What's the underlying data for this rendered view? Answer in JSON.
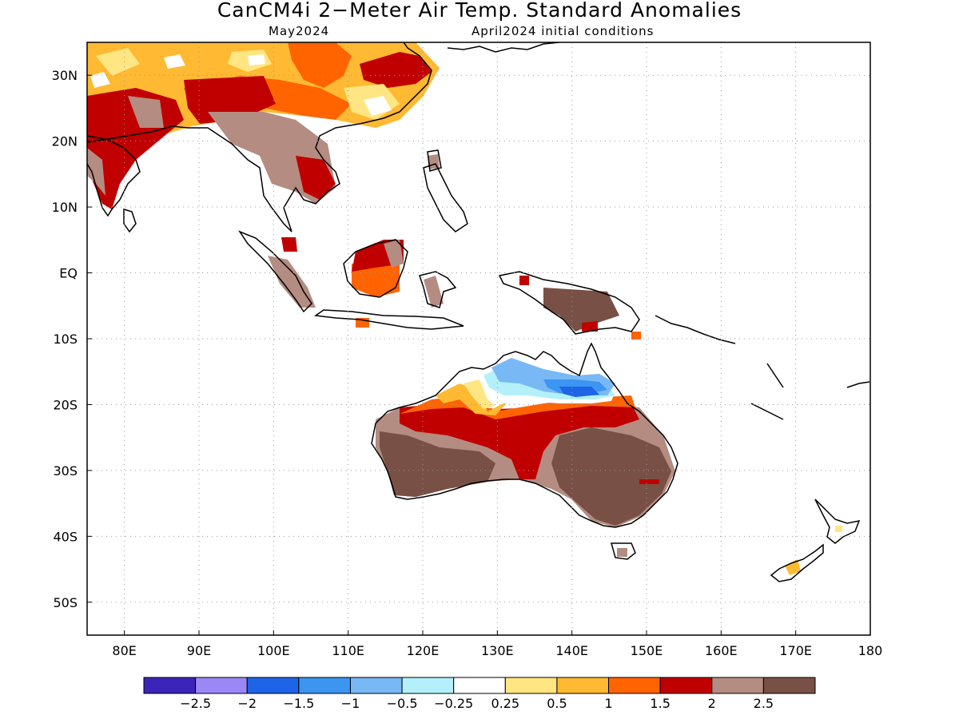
{
  "title": "CanCM4i 2−Meter Air Temp. Standard Anomalies",
  "valid_period": "May2024",
  "initial_conditions": "April2024 initial conditions",
  "map": {
    "lon_range": [
      75,
      180
    ],
    "lat_range": [
      -55,
      35
    ],
    "lat_ticks": [
      {
        "value": 30,
        "label": "30N"
      },
      {
        "value": 20,
        "label": "20N"
      },
      {
        "value": 10,
        "label": "10N"
      },
      {
        "value": 0,
        "label": "EQ"
      },
      {
        "value": -10,
        "label": "10S"
      },
      {
        "value": -20,
        "label": "20S"
      },
      {
        "value": -30,
        "label": "30S"
      },
      {
        "value": -40,
        "label": "40S"
      },
      {
        "value": -50,
        "label": "50S"
      }
    ],
    "lon_ticks": [
      {
        "value": 80,
        "label": "80E"
      },
      {
        "value": 90,
        "label": "90E"
      },
      {
        "value": 100,
        "label": "100E"
      },
      {
        "value": 110,
        "label": "110E"
      },
      {
        "value": 120,
        "label": "120E"
      },
      {
        "value": 130,
        "label": "130E"
      },
      {
        "value": 140,
        "label": "140E"
      },
      {
        "value": 150,
        "label": "150E"
      },
      {
        "value": 160,
        "label": "160E"
      },
      {
        "value": 170,
        "label": "170E"
      },
      {
        "value": 180,
        "label": "180"
      }
    ],
    "grid": "dotted"
  },
  "legend": {
    "colors": [
      "#3b24b8",
      "#9b87f5",
      "#1e64e6",
      "#3c95f0",
      "#78b9f5",
      "#b4f0fa",
      "#ffffff",
      "#ffe682",
      "#ffb932",
      "#ff6400",
      "#c00000",
      "#b48c82",
      "#785046"
    ],
    "labels": [
      "−2.5",
      "−2",
      "−1.5",
      "−1",
      "−0.5",
      "−0.25",
      "0.25",
      "0.5",
      "1",
      "1.5",
      "2",
      "2.5"
    ]
  }
}
